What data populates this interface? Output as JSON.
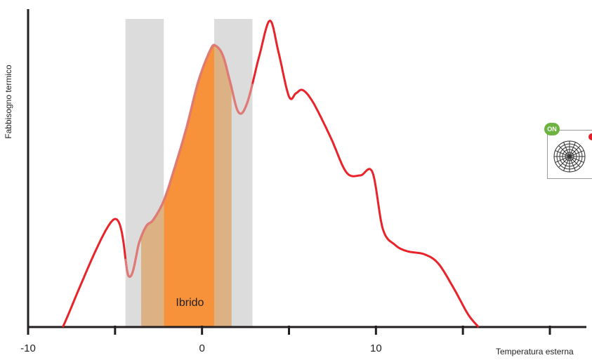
{
  "chart_data": {
    "type": "area",
    "title": "",
    "xlabel": "Temperatura esterna",
    "ylabel": "Fabbisogno termico",
    "xlim": [
      -10,
      20
    ],
    "ylim": [
      0,
      1.0
    ],
    "xticks": [
      -10,
      -5,
      0,
      5,
      10,
      15,
      20
    ],
    "xtick_labels": [
      {
        "value": -10,
        "label": "-10"
      },
      {
        "value": 0,
        "label": "0"
      },
      {
        "value": 10,
        "label": "10"
      }
    ],
    "series": [
      {
        "color": "#e8232a",
        "x": [
          -8,
          -5.1,
          -4.2,
          -3.6,
          -3.2,
          -2.8,
          -2.2,
          -1.6,
          -0.9,
          -0.2,
          0.5,
          0.8,
          1.2,
          1.6,
          2.1,
          2.6,
          3.3,
          3.9,
          4.4,
          5.0,
          5.4,
          5.8,
          6.4,
          7.4,
          8.3,
          9.1,
          9.8,
          10.4,
          11.1,
          11.8,
          12.8,
          13.6,
          14.5,
          15.3,
          15.9
        ],
        "y": [
          0,
          0.34,
          0.16,
          0.27,
          0.32,
          0.34,
          0.4,
          0.5,
          0.63,
          0.78,
          0.88,
          0.89,
          0.86,
          0.78,
          0.68,
          0.71,
          0.86,
          0.97,
          0.87,
          0.73,
          0.74,
          0.75,
          0.71,
          0.6,
          0.49,
          0.48,
          0.49,
          0.31,
          0.26,
          0.24,
          0.23,
          0.2,
          0.12,
          0.04,
          0
        ]
      }
    ],
    "bands": [
      {
        "x_from": -4.4,
        "x_to": -2.2,
        "color": "#dcdcdc"
      },
      {
        "x_from": 0.7,
        "x_to": 2.9,
        "color": "#dcdcdc"
      }
    ],
    "fills": [
      {
        "x_from": -3.5,
        "x_to": -2.2,
        "color": "#dcb183"
      },
      {
        "x_from": -2.2,
        "x_to": 0.7,
        "color": "#f7923a"
      },
      {
        "x_from": 0.7,
        "x_to": 1.7,
        "color": "#dcb183"
      }
    ],
    "highlight_segment": {
      "x_from": -4.4,
      "x_to": 2.9,
      "color": "#de7b77"
    },
    "annotations": [
      {
        "text": "Ibrido",
        "x": -1.1,
        "y": 0.1
      }
    ],
    "grid": false
  },
  "device": {
    "badge_on": "ON",
    "icon": "fan-unit-icon",
    "badge_on_color": "#6cb33f",
    "badge_off_color": "#e02027"
  }
}
